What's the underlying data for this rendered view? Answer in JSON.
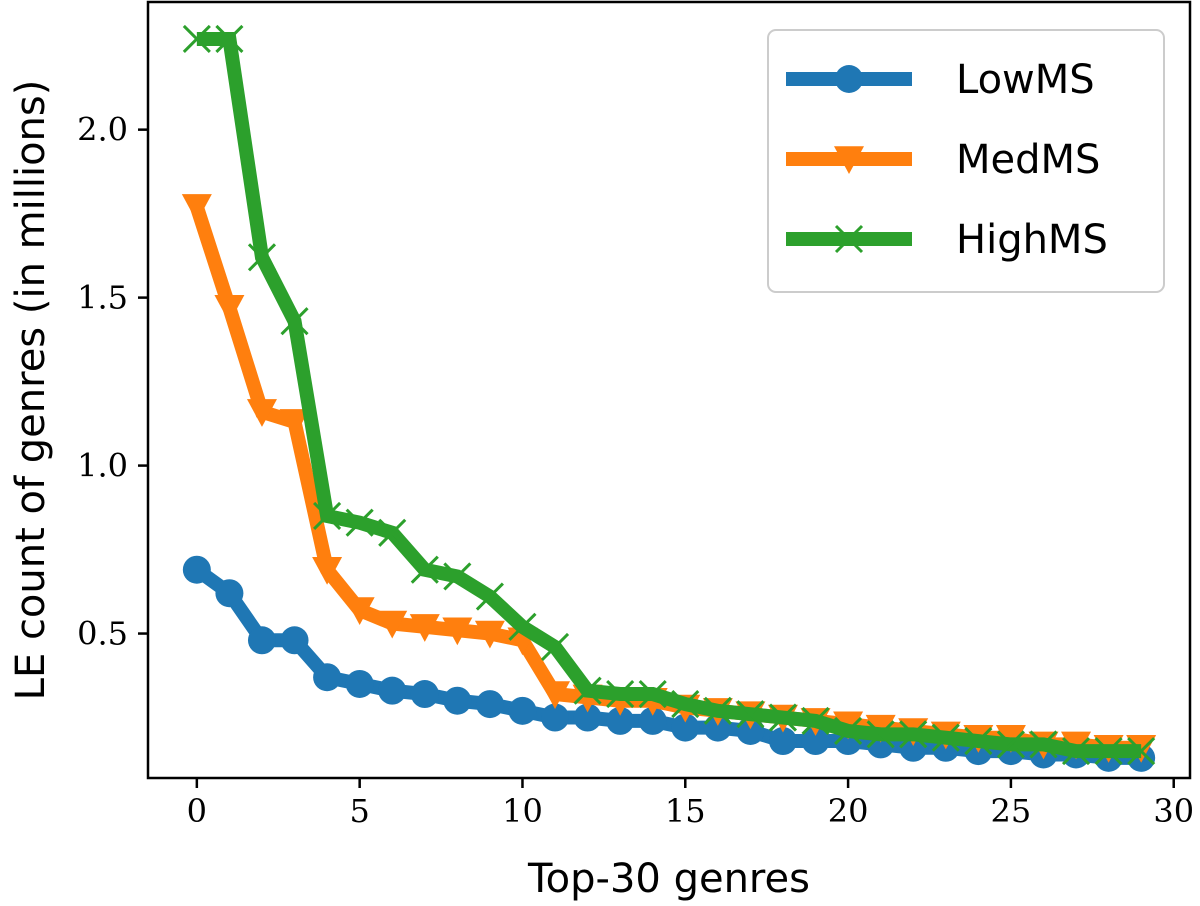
{
  "chart_data": {
    "type": "line",
    "title": "",
    "xlabel": "Top-30 genres",
    "ylabel": "LE count of genres (in millions)",
    "xlim": [
      -1.5,
      30.5
    ],
    "ylim": [
      0.07,
      2.38
    ],
    "xticks": [
      0,
      5,
      10,
      15,
      20,
      25,
      30
    ],
    "yticks": [
      0.5,
      1.0,
      1.5,
      2.0
    ],
    "grid": false,
    "legend_position": "top-right",
    "x": [
      0,
      1,
      2,
      3,
      4,
      5,
      6,
      7,
      8,
      9,
      10,
      11,
      12,
      13,
      14,
      15,
      16,
      17,
      18,
      19,
      20,
      21,
      22,
      23,
      24,
      25,
      26,
      27,
      28,
      29
    ],
    "series": [
      {
        "name": "LowMS",
        "color": "#1f77b4",
        "marker": "circle",
        "values": [
          0.69,
          0.62,
          0.48,
          0.48,
          0.37,
          0.35,
          0.33,
          0.32,
          0.3,
          0.29,
          0.27,
          0.25,
          0.25,
          0.24,
          0.24,
          0.22,
          0.22,
          0.21,
          0.18,
          0.18,
          0.18,
          0.17,
          0.16,
          0.16,
          0.15,
          0.15,
          0.14,
          0.14,
          0.13,
          0.13
        ]
      },
      {
        "name": "MedMS",
        "color": "#ff7f0e",
        "marker": "triangle-down",
        "values": [
          1.77,
          1.47,
          1.16,
          1.13,
          0.69,
          0.57,
          0.53,
          0.52,
          0.51,
          0.5,
          0.48,
          0.32,
          0.31,
          0.3,
          0.3,
          0.28,
          0.27,
          0.26,
          0.25,
          0.24,
          0.23,
          0.22,
          0.21,
          0.2,
          0.19,
          0.19,
          0.17,
          0.17,
          0.16,
          0.16
        ]
      },
      {
        "name": "HighMS",
        "color": "#2ca02c",
        "marker": "x",
        "values": [
          2.27,
          2.27,
          1.62,
          1.43,
          0.85,
          0.83,
          0.8,
          0.69,
          0.67,
          0.61,
          0.52,
          0.46,
          0.33,
          0.32,
          0.32,
          0.29,
          0.27,
          0.26,
          0.25,
          0.24,
          0.21,
          0.2,
          0.2,
          0.19,
          0.18,
          0.17,
          0.17,
          0.15,
          0.15,
          0.15
        ]
      }
    ]
  }
}
